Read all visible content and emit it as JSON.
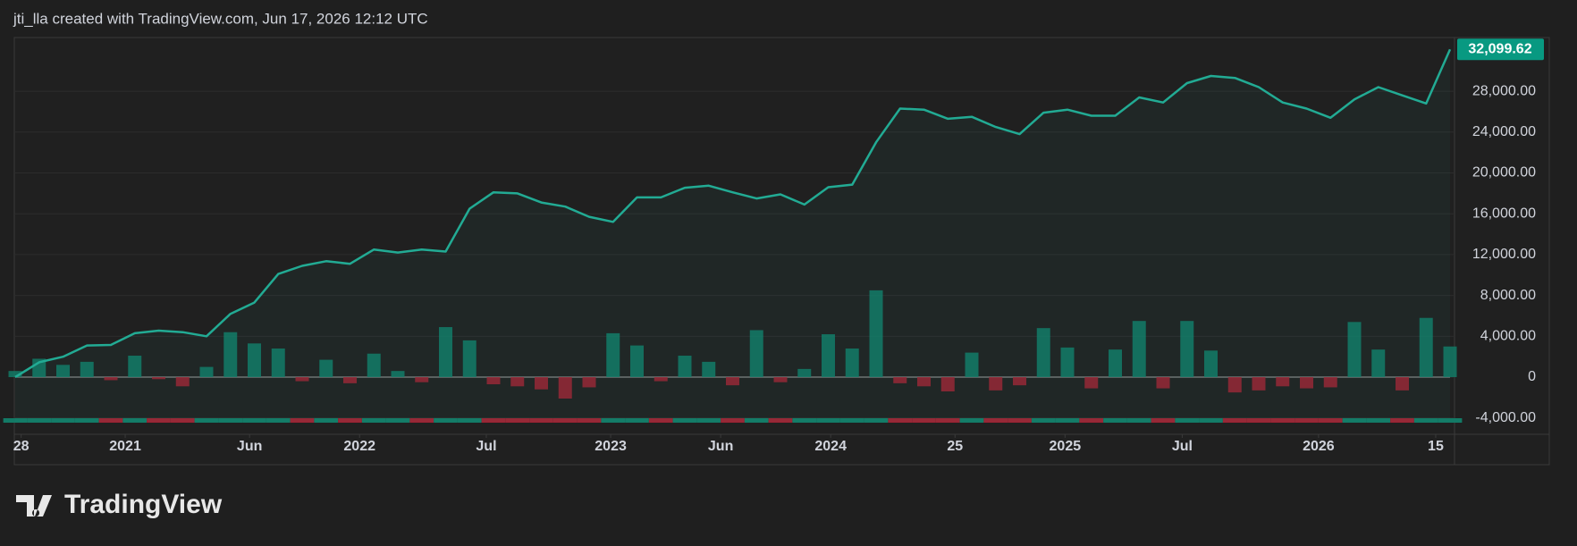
{
  "chart_data": {
    "type": "line",
    "title": "jti_lla created with TradingView.com, Jun 17, 2026 12:12 UTC",
    "brand": "TradingView",
    "last_value_label": "32,099.62",
    "xlim": [
      0,
      60
    ],
    "xticks": [
      {
        "value": 0.25,
        "label": "28"
      },
      {
        "value": 4.6,
        "label": "2021"
      },
      {
        "value": 9.8,
        "label": "Jun"
      },
      {
        "value": 14.4,
        "label": "2022"
      },
      {
        "value": 19.7,
        "label": "Jul"
      },
      {
        "value": 24.9,
        "label": "2023"
      },
      {
        "value": 29.5,
        "label": "Jun"
      },
      {
        "value": 34.1,
        "label": "2024"
      },
      {
        "value": 39.3,
        "label": "25"
      },
      {
        "value": 43.9,
        "label": "2025"
      },
      {
        "value": 48.8,
        "label": "Jul"
      },
      {
        "value": 54.5,
        "label": "2026"
      },
      {
        "value": 59.4,
        "label": "15"
      }
    ],
    "ylim": [
      -5600,
      33260
    ],
    "yticks": [
      {
        "value": -4000,
        "label": "-4,000.00"
      },
      0,
      {
        "value": 4000,
        "label": "4,000.00"
      },
      {
        "value": 8000,
        "label": "8,000.00"
      },
      {
        "value": 12000,
        "label": "12,000.00"
      },
      {
        "value": 16000,
        "label": "16,000.00"
      },
      {
        "value": 20000,
        "label": "20,000.00"
      },
      {
        "value": 24000,
        "label": "24,000.00"
      },
      {
        "value": 28000,
        "label": "28,000.00"
      }
    ],
    "grid": true,
    "series": [
      {
        "type": "line",
        "color": "#22ab94",
        "values": [
          0,
          1450,
          2000,
          3100,
          3150,
          4300,
          4550,
          4400,
          4000,
          6200,
          7300,
          10100,
          10900,
          11350,
          11100,
          12500,
          12200,
          12500,
          12300,
          16500,
          18100,
          18000,
          17100,
          16700,
          15700,
          15200,
          17600,
          17600,
          18550,
          18750,
          18100,
          17500,
          17900,
          16900,
          18600,
          18850,
          23000,
          26300,
          26200,
          25300,
          25500,
          24500,
          23800,
          25900,
          26200,
          25600,
          25600,
          27400,
          26900,
          28800,
          29500,
          29300,
          28400,
          26900,
          26300,
          25400,
          27200,
          28400,
          27600,
          26800,
          32099.62
        ]
      },
      {
        "type": "bar",
        "up_color": "#137a66",
        "down_color": "#9c2232",
        "values": [
          600,
          1800,
          1200,
          1500,
          -300,
          2100,
          -200,
          -900,
          1000,
          4400,
          3300,
          2800,
          -400,
          1700,
          -600,
          2300,
          600,
          -500,
          4900,
          3600,
          -700,
          -900,
          -1200,
          -2100,
          -1000,
          4300,
          3100,
          -400,
          2100,
          1500,
          -800,
          4600,
          -500,
          800,
          4200,
          2800,
          8500,
          -600,
          -900,
          -1400,
          2400,
          -1300,
          -800,
          4800,
          2900,
          -1100,
          2700,
          5500,
          -1100,
          5500,
          2600,
          -1500,
          -1300,
          -900,
          -1100,
          -1000,
          5400,
          2700,
          -1300,
          5800,
          3000
        ]
      }
    ]
  }
}
